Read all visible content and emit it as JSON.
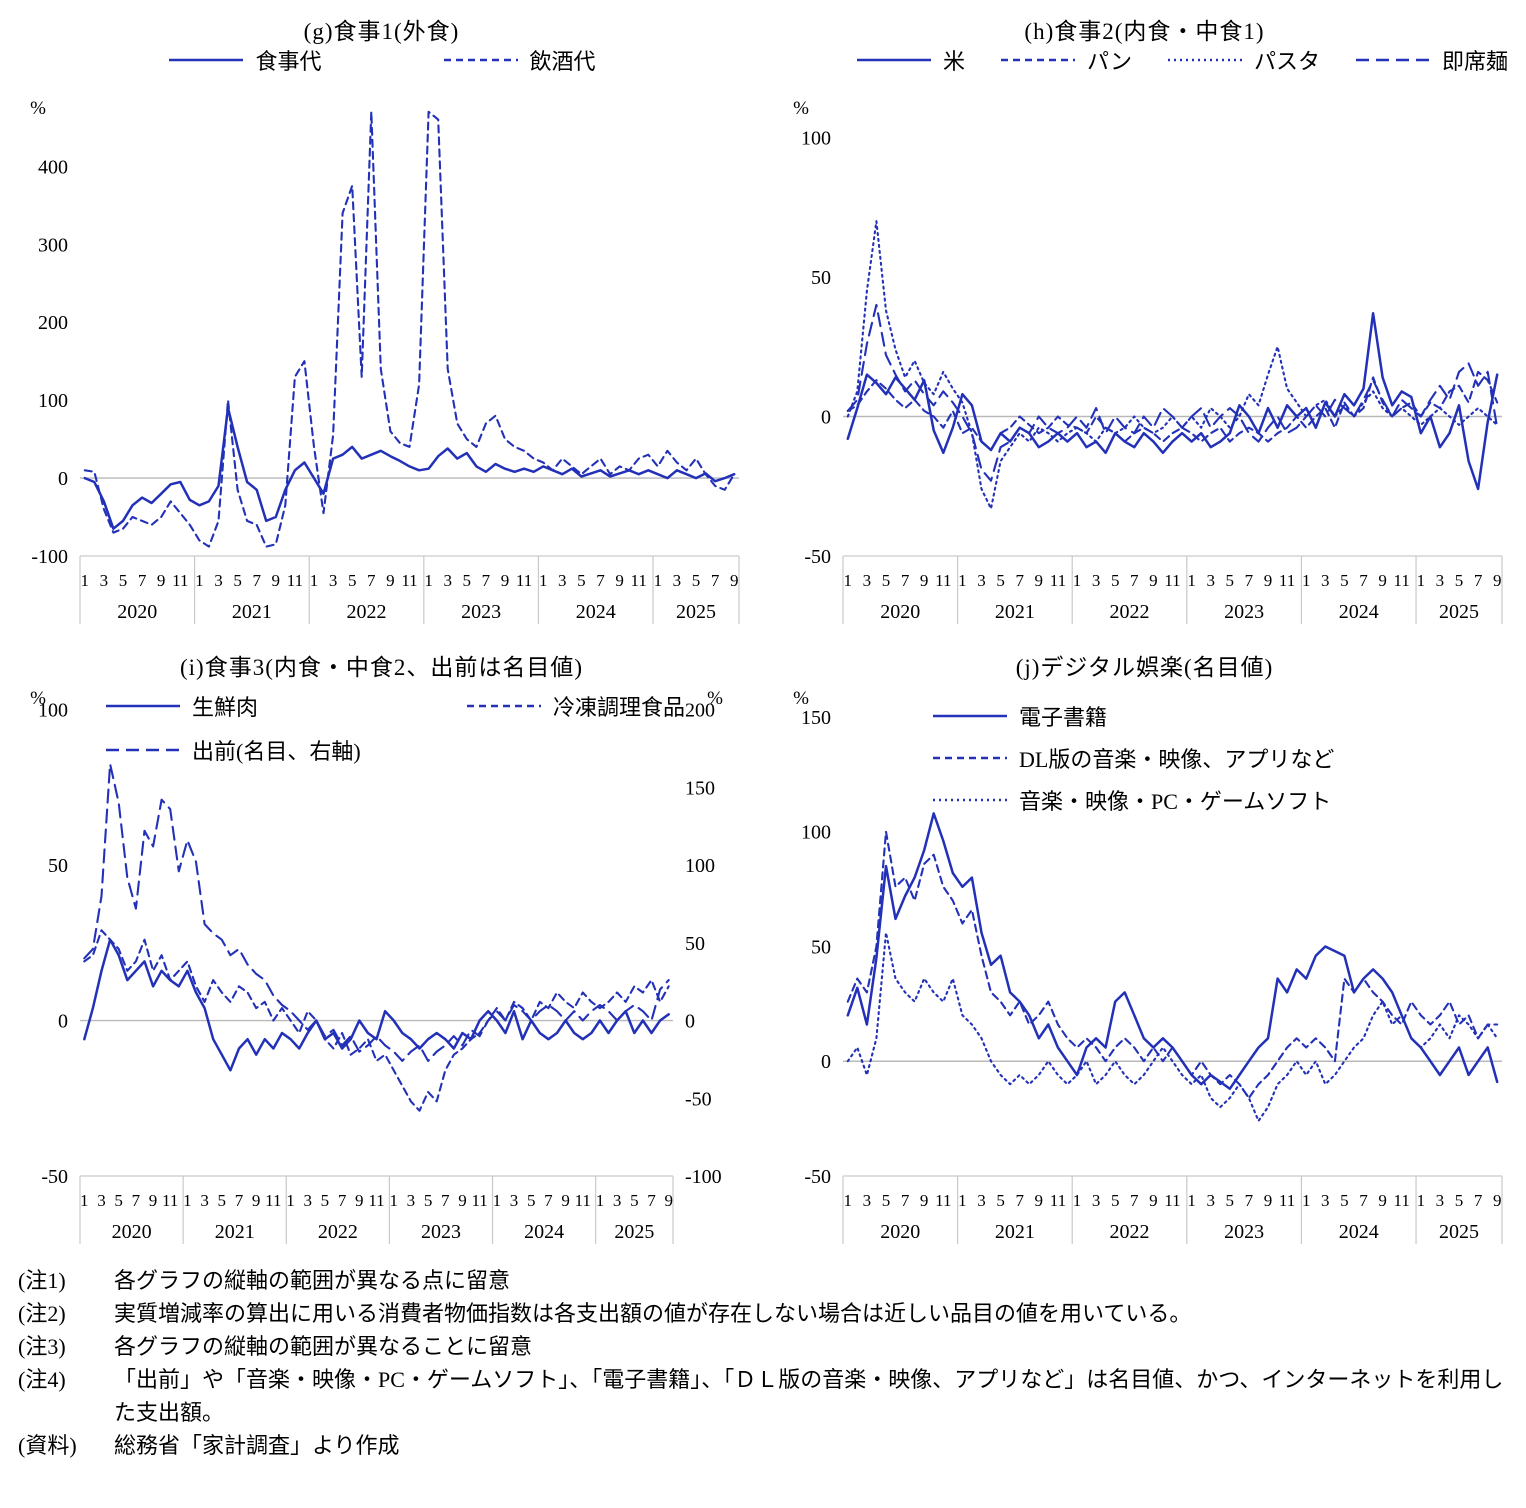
{
  "accent_color": "#2231b8",
  "zero_line_color": "#b9b9b9",
  "axis_line_color": "#c9c9c9",
  "chart_data": [
    {
      "type": "line",
      "title": "(g)食事1(外食)",
      "unit": "%",
      "years": [
        "2020",
        "2021",
        "2022",
        "2023",
        "2024",
        "2025"
      ],
      "months_per_year": [
        12,
        12,
        12,
        12,
        12,
        9
      ],
      "month_ticks": [
        1,
        3,
        5,
        7,
        9,
        11
      ],
      "yticks": [
        400,
        300,
        200,
        100,
        0,
        -100
      ],
      "ylim": [
        -100,
        480
      ],
      "legend_position": "top-center",
      "legend_rows": [
        [
          0,
          1
        ]
      ],
      "series": [
        {
          "name": "食事代",
          "style": "solid",
          "values": [
            0,
            -5,
            -30,
            -65,
            -55,
            -35,
            -25,
            -32,
            -20,
            -8,
            -5,
            -28,
            -35,
            -30,
            -10,
            90,
            40,
            -5,
            -15,
            -55,
            -50,
            -15,
            10,
            20,
            0,
            -20,
            25,
            30,
            40,
            25,
            30,
            35,
            28,
            22,
            15,
            10,
            12,
            28,
            38,
            25,
            32,
            15,
            8,
            18,
            12,
            8,
            12,
            8,
            15,
            10,
            5,
            12,
            2,
            6,
            10,
            2,
            6,
            10,
            5,
            10,
            5,
            0,
            10,
            5,
            0,
            6,
            -4,
            0,
            5
          ]
        },
        {
          "name": "飲酒代",
          "style": "dash",
          "values": [
            10,
            8,
            -40,
            -70,
            -65,
            -50,
            -55,
            -60,
            -50,
            -30,
            -45,
            -60,
            -80,
            -88,
            -55,
            100,
            -15,
            -55,
            -60,
            -88,
            -85,
            -35,
            130,
            150,
            40,
            -45,
            55,
            340,
            375,
            130,
            470,
            140,
            60,
            45,
            40,
            120,
            470,
            460,
            140,
            70,
            50,
            40,
            70,
            80,
            50,
            40,
            35,
            25,
            20,
            10,
            25,
            15,
            5,
            15,
            25,
            5,
            15,
            10,
            25,
            30,
            15,
            35,
            20,
            10,
            25,
            5,
            -10,
            -15,
            5
          ]
        }
      ]
    },
    {
      "type": "line",
      "title": "(h)食事2(内食・中食1)",
      "unit": "%",
      "years": [
        "2020",
        "2021",
        "2022",
        "2023",
        "2024",
        "2025"
      ],
      "months_per_year": [
        12,
        12,
        12,
        12,
        12,
        9
      ],
      "month_ticks": [
        1,
        3,
        5,
        7,
        9,
        11
      ],
      "yticks": [
        100,
        50,
        0,
        -50
      ],
      "ylim": [
        -50,
        112
      ],
      "legend_position": "top-spread",
      "legend_rows": [
        [
          0,
          1,
          2,
          3
        ]
      ],
      "series": [
        {
          "name": "米",
          "style": "solid",
          "values": [
            -8,
            3,
            15,
            12,
            8,
            14,
            10,
            6,
            13,
            -5,
            -13,
            -4,
            8,
            4,
            -9,
            -12,
            -6,
            -9,
            -4,
            -6,
            -11,
            -9,
            -6,
            -9,
            -6,
            -11,
            -9,
            -13,
            -6,
            -9,
            -11,
            -6,
            -9,
            -13,
            -9,
            -6,
            -9,
            -6,
            -11,
            -9,
            -6,
            4,
            0,
            -6,
            3,
            -4,
            4,
            0,
            3,
            -4,
            5,
            0,
            8,
            4,
            10,
            37,
            14,
            4,
            9,
            7,
            -6,
            0,
            -11,
            -6,
            4,
            -16,
            -26,
            -2,
            15
          ]
        },
        {
          "name": "パン",
          "style": "dash",
          "values": [
            2,
            4,
            9,
            13,
            10,
            6,
            3,
            6,
            2,
            0,
            -4,
            2,
            -6,
            -4,
            -9,
            -12,
            -6,
            -4,
            0,
            -3,
            -6,
            -4,
            0,
            -3,
            -4,
            -6,
            0,
            -4,
            -6,
            -9,
            -6,
            -4,
            -6,
            -9,
            -6,
            -4,
            -6,
            -9,
            -6,
            -4,
            -9,
            -6,
            -4,
            -6,
            -9,
            -6,
            -4,
            0,
            -4,
            0,
            3,
            -4,
            5,
            0,
            3,
            14,
            5,
            0,
            3,
            5,
            0,
            5,
            3,
            9,
            11,
            5,
            16,
            13,
            5
          ]
        },
        {
          "name": "パスタ",
          "style": "dot",
          "values": [
            0,
            9,
            45,
            70,
            38,
            24,
            14,
            20,
            12,
            8,
            16,
            10,
            5,
            -6,
            -26,
            -33,
            -16,
            -11,
            -6,
            -9,
            -4,
            -6,
            -9,
            -6,
            -4,
            -6,
            -9,
            -4,
            -6,
            -4,
            0,
            -4,
            -6,
            -4,
            0,
            -4,
            0,
            -4,
            3,
            0,
            -4,
            0,
            8,
            4,
            15,
            25,
            10,
            5,
            0,
            4,
            6,
            0,
            4,
            0,
            5,
            9,
            3,
            0,
            3,
            0,
            -3,
            0,
            3,
            0,
            -3,
            0,
            3,
            0,
            -3
          ]
        },
        {
          "name": "即席麺",
          "style": "longdash",
          "values": [
            2,
            6,
            26,
            40,
            22,
            15,
            9,
            13,
            8,
            4,
            9,
            5,
            0,
            -6,
            -19,
            -23,
            -11,
            -9,
            -4,
            -6,
            0,
            -4,
            -6,
            -4,
            0,
            -4,
            3,
            -6,
            0,
            -4,
            -6,
            0,
            -4,
            3,
            0,
            -4,
            0,
            3,
            -4,
            0,
            3,
            0,
            -6,
            -9,
            -4,
            0,
            -6,
            -4,
            0,
            4,
            0,
            6,
            3,
            0,
            6,
            13,
            6,
            0,
            6,
            3,
            0,
            6,
            11,
            6,
            16,
            19,
            11,
            16,
            -4
          ]
        }
      ]
    },
    {
      "type": "line",
      "title": "(i)食事3(内食・中食2、出前は名目値)",
      "unit": "%",
      "unit_right": "%",
      "years": [
        "2020",
        "2021",
        "2022",
        "2023",
        "2024",
        "2025"
      ],
      "months_per_year": [
        12,
        12,
        12,
        12,
        12,
        9
      ],
      "month_ticks": [
        1,
        3,
        5,
        7,
        9,
        11
      ],
      "yticks": [
        100,
        50,
        0,
        -50
      ],
      "ylim": [
        -50,
        105
      ],
      "yticks_right": [
        200,
        150,
        100,
        50,
        0,
        -50,
        -100
      ],
      "ylim_right": [
        -100,
        210
      ],
      "legend_position": "overlay-two-rows",
      "legend_rows": [
        [
          0,
          1
        ],
        [
          2
        ]
      ],
      "series": [
        {
          "name": "生鮮肉",
          "style": "solid",
          "values": [
            -6,
            4,
            16,
            26,
            21,
            13,
            16,
            19,
            11,
            16,
            13,
            11,
            16,
            9,
            4,
            -6,
            -11,
            -16,
            -9,
            -6,
            -11,
            -6,
            -9,
            -4,
            -6,
            -9,
            -4,
            0,
            -6,
            -4,
            -9,
            -6,
            0,
            -4,
            -6,
            3,
            0,
            -4,
            -6,
            -9,
            -6,
            -4,
            -6,
            -9,
            -4,
            -6,
            0,
            3,
            0,
            -4,
            3,
            -6,
            0,
            -4,
            -6,
            -4,
            0,
            -4,
            -6,
            -4,
            0,
            -4,
            0,
            3,
            -4,
            0,
            -4,
            0,
            2
          ]
        },
        {
          "name": "冷凍調理食品",
          "style": "dash",
          "values": [
            19,
            21,
            29,
            26,
            23,
            16,
            19,
            26,
            16,
            21,
            13,
            16,
            19,
            11,
            6,
            13,
            9,
            6,
            11,
            9,
            4,
            6,
            0,
            4,
            0,
            -4,
            3,
            0,
            -6,
            -9,
            -4,
            -11,
            -9,
            -6,
            -13,
            -11,
            -16,
            -21,
            -26,
            -29,
            -23,
            -26,
            -16,
            -11,
            -9,
            -6,
            -4,
            0,
            4,
            0,
            6,
            4,
            0,
            6,
            4,
            9,
            6,
            4,
            9,
            6,
            4,
            6,
            9,
            6,
            11,
            9,
            13,
            6,
            11
          ]
        },
        {
          "name": "出前(名目、右軸)",
          "style": "longdash",
          "axis": "right",
          "values": [
            40,
            46,
            80,
            165,
            140,
            92,
            72,
            122,
            112,
            142,
            136,
            96,
            116,
            102,
            62,
            56,
            52,
            42,
            46,
            36,
            30,
            26,
            16,
            10,
            6,
            0,
            -6,
            0,
            -10,
            -6,
            -16,
            -10,
            -20,
            -16,
            -10,
            -16,
            -20,
            -26,
            -20,
            -16,
            -26,
            -20,
            -16,
            -10,
            -16,
            -6,
            -10,
            0,
            6,
            0,
            10,
            6,
            0,
            6,
            10,
            6,
            0,
            6,
            0,
            6,
            10,
            6,
            0,
            6,
            10,
            6,
            0,
            20,
            26
          ]
        }
      ]
    },
    {
      "type": "line",
      "title": "(j)デジタル娯楽(名目値)",
      "unit": "%",
      "years": [
        "2020",
        "2021",
        "2022",
        "2023",
        "2024",
        "2025"
      ],
      "months_per_year": [
        12,
        12,
        12,
        12,
        12,
        9
      ],
      "month_ticks": [
        1,
        3,
        5,
        7,
        9,
        11
      ],
      "yticks": [
        150,
        100,
        50,
        0,
        -50
      ],
      "ylim": [
        -50,
        160
      ],
      "legend_position": "overlay-stacked",
      "legend_rows": [
        [
          0
        ],
        [
          1
        ],
        [
          2
        ]
      ],
      "series": [
        {
          "name": "電子書籍",
          "style": "solid",
          "values": [
            20,
            32,
            16,
            45,
            85,
            62,
            72,
            80,
            92,
            108,
            96,
            82,
            76,
            80,
            56,
            42,
            46,
            30,
            26,
            20,
            10,
            16,
            6,
            0,
            -6,
            6,
            10,
            6,
            26,
            30,
            20,
            10,
            6,
            10,
            6,
            0,
            -6,
            -10,
            -6,
            -9,
            -12,
            -6,
            0,
            6,
            10,
            36,
            30,
            40,
            36,
            46,
            50,
            48,
            46,
            30,
            36,
            40,
            36,
            30,
            20,
            10,
            6,
            0,
            -6,
            0,
            6,
            -6,
            0,
            6,
            -9
          ]
        },
        {
          "name": "DL版の音楽・映像、アプリなど",
          "style": "dash",
          "values": [
            26,
            36,
            30,
            50,
            100,
            76,
            80,
            70,
            86,
            90,
            76,
            70,
            60,
            66,
            46,
            30,
            26,
            20,
            26,
            16,
            20,
            26,
            16,
            10,
            6,
            10,
            6,
            0,
            6,
            10,
            6,
            0,
            6,
            0,
            6,
            0,
            -6,
            0,
            -6,
            -10,
            -6,
            -10,
            -16,
            -10,
            -6,
            0,
            6,
            10,
            6,
            10,
            6,
            0,
            36,
            30,
            36,
            30,
            26,
            20,
            16,
            26,
            20,
            16,
            20,
            26,
            16,
            20,
            10,
            16,
            16
          ]
        },
        {
          "name": "音楽・映像・PC・ゲームソフト",
          "style": "dot",
          "values": [
            0,
            6,
            -6,
            10,
            56,
            36,
            30,
            26,
            36,
            30,
            26,
            36,
            20,
            16,
            10,
            0,
            -6,
            -10,
            -6,
            -10,
            -6,
            0,
            -6,
            -10,
            -6,
            0,
            -10,
            -6,
            0,
            -6,
            -10,
            -6,
            0,
            6,
            0,
            -6,
            -10,
            -6,
            -16,
            -20,
            -16,
            -10,
            -16,
            -26,
            -20,
            -10,
            -6,
            0,
            -6,
            0,
            -10,
            -6,
            0,
            6,
            10,
            20,
            26,
            16,
            20,
            10,
            6,
            10,
            16,
            10,
            20,
            16,
            10,
            16,
            10
          ]
        }
      ]
    }
  ],
  "notes": [
    {
      "label": "(注1)",
      "text": "各グラフの縦軸の範囲が異なる点に留意"
    },
    {
      "label": "(注2)",
      "text": "実質増減率の算出に用いる消費者物価指数は各支出額の値が存在しない場合は近しい品目の値を用いている。"
    },
    {
      "label": "(注3)",
      "text": "各グラフの縦軸の範囲が異なることに留意"
    },
    {
      "label": "(注4)",
      "text": "「出前」や「音楽・映像・PC・ゲームソフト」、「電子書籍」、「ＤＬ版の音楽・映像、アプリなど」は名目値、かつ、インターネットを利用した支出額。"
    },
    {
      "label": "(資料)",
      "text": "総務省「家計調査」より作成"
    }
  ]
}
